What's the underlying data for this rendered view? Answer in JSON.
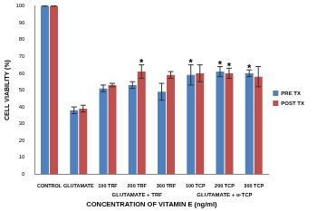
{
  "chart_data": {
    "type": "bar",
    "x_label": "CONCENTRATION OF VITAMIN E (ng/ml)",
    "y_label": "CELL VIABILITY (%)",
    "categories": [
      "CONTROL",
      "GLUTAMATE",
      "100 TRF",
      "200 TRF",
      "300 TRF",
      "100 TCP",
      "200 TCP",
      "300 TCP"
    ],
    "category_groups": [
      {
        "label": "GLUTAMATE + TRF",
        "categories": [
          "100 TRF",
          "200 TRF",
          "300 TRF"
        ]
      },
      {
        "label": "GLUTAMATE + α-TCP",
        "categories": [
          "100 TCP",
          "200 TCP",
          "300 TCP"
        ]
      }
    ],
    "series": [
      {
        "name": "PRE TX",
        "color": "#4f81bd",
        "values": [
          100,
          38,
          51,
          53,
          49,
          59,
          61,
          60
        ],
        "errors": [
          0,
          2,
          2,
          2,
          5,
          6,
          3,
          2
        ]
      },
      {
        "name": "POST TX",
        "color": "#c0504d",
        "values": [
          100,
          39,
          53,
          61,
          59,
          60,
          60,
          58
        ],
        "errors": [
          0,
          2,
          1,
          4,
          2,
          5,
          3,
          6
        ]
      }
    ],
    "annotations": [
      {
        "category": "200 TRF",
        "series": "POST TX",
        "text": "*"
      },
      {
        "category": "100 TCP",
        "series": "PRE TX",
        "text": "*"
      },
      {
        "category": "200 TCP",
        "series": "PRE TX",
        "text": "*"
      },
      {
        "category": "200 TCP",
        "series": "POST TX",
        "text": "*"
      },
      {
        "category": "300 TCP",
        "series": "PRE TX",
        "text": "*"
      }
    ],
    "ylim": [
      0,
      100
    ],
    "yticks": [
      0,
      10,
      20,
      30,
      40,
      50,
      60,
      70,
      80,
      90,
      100
    ],
    "grid": false,
    "legend": "right"
  }
}
